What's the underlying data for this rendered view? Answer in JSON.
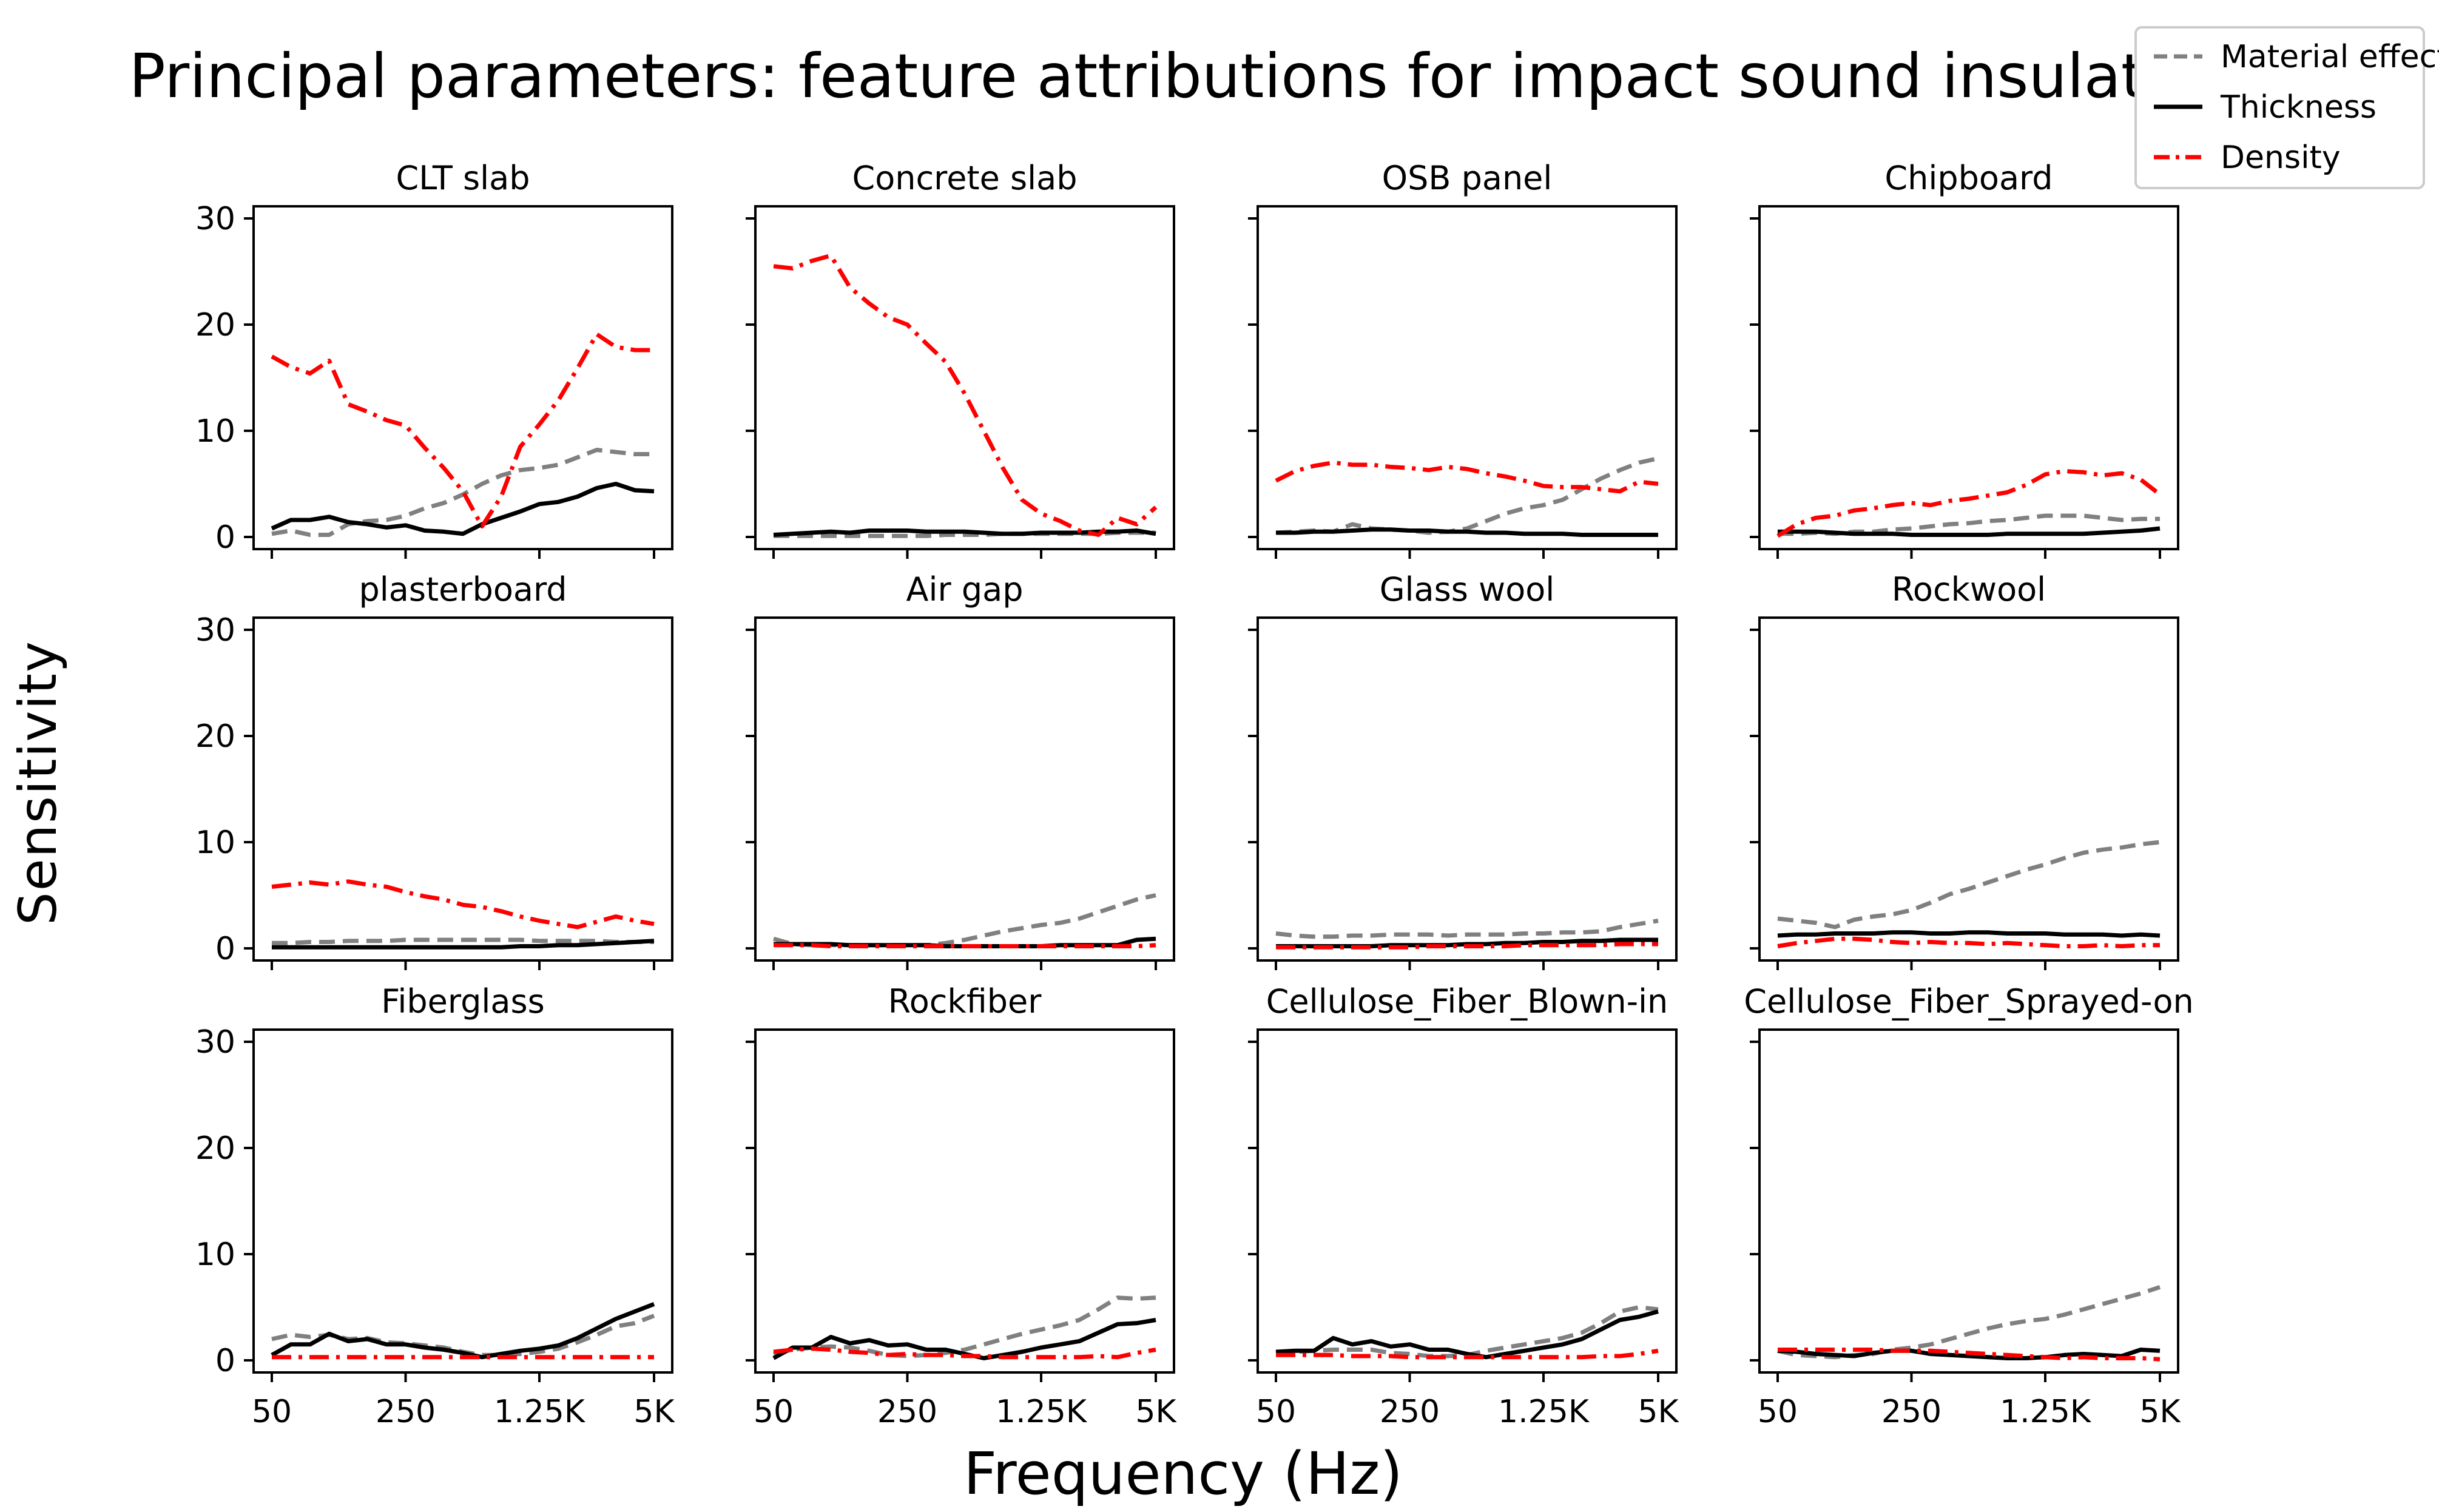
{
  "suptitle": "Principal parameters: feature attributions for impact sound insulation",
  "xlabel": "Frequency (Hz)",
  "ylabel": "Sensitivity",
  "legend": {
    "placement": "top-right",
    "entries": [
      {
        "label": "Material effect",
        "color": "#808080",
        "style": "dashed"
      },
      {
        "label": "Thickness",
        "color": "#000000",
        "style": "solid"
      },
      {
        "label": "Density",
        "color": "#ff0000",
        "style": "dashdot"
      }
    ]
  },
  "chart_data": {
    "type": "line",
    "grid": false,
    "x": [
      "50",
      "63",
      "80",
      "100",
      "125",
      "160",
      "200",
      "250",
      "315",
      "400",
      "500",
      "630",
      "800",
      "1K",
      "1.25K",
      "1.6K",
      "2K",
      "2.5K",
      "3.15K",
      "4K",
      "5K"
    ],
    "xticks": [
      "50",
      "250",
      "1.25K",
      "5K"
    ],
    "xtick_index": [
      0,
      7,
      14,
      20
    ],
    "ylim": [
      0,
      30
    ],
    "yticks": [
      0,
      10,
      20,
      30
    ],
    "panels": [
      {
        "title": "CLT slab",
        "series": [
          {
            "name": "Material effect",
            "values": [
              0.3,
              0.6,
              0.2,
              0.2,
              1.2,
              1.5,
              1.6,
              2.0,
              2.7,
              3.2,
              4.0,
              5.0,
              5.8,
              6.3,
              6.5,
              6.8,
              7.5,
              8.2,
              8.0,
              7.8,
              7.8
            ]
          },
          {
            "name": "Thickness",
            "values": [
              0.8,
              1.6,
              1.6,
              1.9,
              1.4,
              1.2,
              0.9,
              1.1,
              0.6,
              0.5,
              0.3,
              1.2,
              1.8,
              2.4,
              3.1,
              3.3,
              3.8,
              4.6,
              5.0,
              4.4,
              4.3
            ]
          },
          {
            "name": "Density",
            "values": [
              17.0,
              16.0,
              15.4,
              16.6,
              12.5,
              11.8,
              11.0,
              10.5,
              8.4,
              6.5,
              4.3,
              1.0,
              3.8,
              8.5,
              10.6,
              12.9,
              15.9,
              19.1,
              17.9,
              17.6,
              17.6
            ]
          }
        ]
      },
      {
        "title": "Concrete slab",
        "series": [
          {
            "name": "Material effect",
            "values": [
              0.1,
              0.1,
              0.1,
              0.1,
              0.1,
              0.1,
              0.1,
              0.1,
              0.1,
              0.2,
              0.2,
              0.2,
              0.3,
              0.3,
              0.3,
              0.3,
              0.3,
              0.3,
              0.4,
              0.4,
              0.4
            ]
          },
          {
            "name": "Thickness",
            "values": [
              0.2,
              0.3,
              0.4,
              0.5,
              0.4,
              0.6,
              0.6,
              0.6,
              0.5,
              0.5,
              0.5,
              0.4,
              0.3,
              0.3,
              0.4,
              0.4,
              0.4,
              0.5,
              0.5,
              0.6,
              0.3
            ]
          },
          {
            "name": "Density",
            "values": [
              25.5,
              25.3,
              26.0,
              26.5,
              23.5,
              22.0,
              20.7,
              20.0,
              18.2,
              16.5,
              13.5,
              10.0,
              6.5,
              3.5,
              2.2,
              1.5,
              0.6,
              0.2,
              1.8,
              1.2,
              2.8
            ]
          }
        ]
      },
      {
        "title": "OSB panel",
        "series": [
          {
            "name": "Material effect",
            "values": [
              0.4,
              0.5,
              0.6,
              0.5,
              1.2,
              0.8,
              0.7,
              0.6,
              0.4,
              0.5,
              0.8,
              1.5,
              2.2,
              2.7,
              3.0,
              3.5,
              4.5,
              5.5,
              6.3,
              7.0,
              7.4
            ]
          },
          {
            "name": "Thickness",
            "values": [
              0.4,
              0.4,
              0.5,
              0.5,
              0.6,
              0.7,
              0.7,
              0.6,
              0.6,
              0.5,
              0.5,
              0.4,
              0.4,
              0.3,
              0.3,
              0.3,
              0.2,
              0.2,
              0.2,
              0.2,
              0.2
            ]
          },
          {
            "name": "Density",
            "values": [
              5.3,
              6.2,
              6.7,
              7.0,
              6.8,
              6.8,
              6.6,
              6.5,
              6.3,
              6.6,
              6.4,
              6.0,
              5.7,
              5.3,
              4.8,
              4.7,
              4.7,
              4.5,
              4.3,
              5.2,
              5.0
            ]
          }
        ]
      },
      {
        "title": "Chipboard",
        "series": [
          {
            "name": "Material effect",
            "values": [
              0.3,
              0.3,
              0.4,
              0.3,
              0.5,
              0.5,
              0.7,
              0.8,
              1.0,
              1.2,
              1.3,
              1.5,
              1.6,
              1.8,
              2.0,
              2.0,
              2.0,
              1.8,
              1.6,
              1.7,
              1.7
            ]
          },
          {
            "name": "Thickness",
            "values": [
              0.5,
              0.5,
              0.5,
              0.4,
              0.3,
              0.3,
              0.3,
              0.2,
              0.2,
              0.2,
              0.2,
              0.2,
              0.3,
              0.3,
              0.3,
              0.3,
              0.3,
              0.4,
              0.5,
              0.6,
              0.8
            ]
          },
          {
            "name": "Density",
            "values": [
              0.1,
              1.2,
              1.8,
              2.0,
              2.5,
              2.7,
              3.0,
              3.2,
              3.0,
              3.4,
              3.6,
              3.9,
              4.2,
              4.9,
              5.9,
              6.2,
              6.1,
              5.8,
              6.0,
              5.4,
              4.0
            ]
          }
        ]
      },
      {
        "title": "plasterboard",
        "series": [
          {
            "name": "Material effect",
            "values": [
              0.5,
              0.5,
              0.6,
              0.6,
              0.7,
              0.7,
              0.7,
              0.8,
              0.8,
              0.8,
              0.8,
              0.8,
              0.8,
              0.8,
              0.7,
              0.7,
              0.7,
              0.7,
              0.6,
              0.6,
              0.6
            ]
          },
          {
            "name": "Thickness",
            "values": [
              0.1,
              0.1,
              0.1,
              0.1,
              0.1,
              0.1,
              0.1,
              0.1,
              0.1,
              0.1,
              0.1,
              0.1,
              0.1,
              0.2,
              0.2,
              0.3,
              0.3,
              0.4,
              0.5,
              0.6,
              0.7
            ]
          },
          {
            "name": "Density",
            "values": [
              5.8,
              6.0,
              6.2,
              6.0,
              6.3,
              6.0,
              5.8,
              5.3,
              4.9,
              4.6,
              4.1,
              3.9,
              3.5,
              3.0,
              2.6,
              2.3,
              2.0,
              2.5,
              3.0,
              2.6,
              2.3
            ]
          }
        ]
      },
      {
        "title": "Air gap",
        "series": [
          {
            "name": "Material effect",
            "values": [
              0.9,
              0.4,
              0.3,
              0.3,
              0.3,
              0.3,
              0.3,
              0.3,
              0.3,
              0.5,
              0.8,
              1.2,
              1.6,
              1.9,
              2.2,
              2.4,
              2.8,
              3.4,
              4.0,
              4.6,
              5.0
            ]
          },
          {
            "name": "Thickness",
            "values": [
              0.4,
              0.4,
              0.4,
              0.4,
              0.3,
              0.3,
              0.3,
              0.3,
              0.3,
              0.2,
              0.2,
              0.2,
              0.2,
              0.2,
              0.2,
              0.3,
              0.3,
              0.3,
              0.3,
              0.8,
              0.9
            ]
          },
          {
            "name": "Density",
            "values": [
              0.3,
              0.3,
              0.3,
              0.2,
              0.2,
              0.2,
              0.2,
              0.2,
              0.2,
              0.2,
              0.2,
              0.2,
              0.2,
              0.2,
              0.2,
              0.2,
              0.2,
              0.2,
              0.2,
              0.2,
              0.3
            ]
          }
        ]
      },
      {
        "title": "Glass wool",
        "series": [
          {
            "name": "Material effect",
            "values": [
              1.4,
              1.2,
              1.1,
              1.1,
              1.2,
              1.2,
              1.3,
              1.3,
              1.3,
              1.2,
              1.3,
              1.3,
              1.3,
              1.4,
              1.4,
              1.5,
              1.5,
              1.6,
              2.0,
              2.3,
              2.6
            ]
          },
          {
            "name": "Thickness",
            "values": [
              0.2,
              0.2,
              0.2,
              0.2,
              0.2,
              0.2,
              0.3,
              0.3,
              0.3,
              0.3,
              0.4,
              0.4,
              0.5,
              0.5,
              0.6,
              0.6,
              0.7,
              0.7,
              0.8,
              0.8,
              0.8
            ]
          },
          {
            "name": "Density",
            "values": [
              0.1,
              0.1,
              0.1,
              0.1,
              0.1,
              0.1,
              0.1,
              0.1,
              0.2,
              0.2,
              0.2,
              0.2,
              0.2,
              0.3,
              0.3,
              0.3,
              0.3,
              0.3,
              0.4,
              0.4,
              0.4
            ]
          }
        ]
      },
      {
        "title": "Rockwool",
        "series": [
          {
            "name": "Material effect",
            "values": [
              2.8,
              2.6,
              2.4,
              2.0,
              2.7,
              3.0,
              3.2,
              3.6,
              4.3,
              5.1,
              5.6,
              6.2,
              6.8,
              7.4,
              7.9,
              8.5,
              9.0,
              9.3,
              9.5,
              9.8,
              10.0
            ]
          },
          {
            "name": "Thickness",
            "values": [
              1.2,
              1.3,
              1.3,
              1.4,
              1.4,
              1.4,
              1.5,
              1.5,
              1.4,
              1.4,
              1.5,
              1.5,
              1.4,
              1.4,
              1.4,
              1.3,
              1.3,
              1.3,
              1.2,
              1.3,
              1.2
            ]
          },
          {
            "name": "Density",
            "values": [
              0.2,
              0.5,
              0.7,
              0.9,
              0.9,
              0.8,
              0.6,
              0.5,
              0.6,
              0.5,
              0.5,
              0.4,
              0.5,
              0.4,
              0.3,
              0.2,
              0.2,
              0.3,
              0.2,
              0.3,
              0.3
            ]
          }
        ]
      },
      {
        "title": "Fiberglass",
        "series": [
          {
            "name": "Material effect",
            "values": [
              2.0,
              2.4,
              2.2,
              2.4,
              2.0,
              2.1,
              1.7,
              1.6,
              1.4,
              1.2,
              0.8,
              0.5,
              0.5,
              0.6,
              0.8,
              1.1,
              1.7,
              2.4,
              3.2,
              3.5,
              4.2
            ]
          },
          {
            "name": "Thickness",
            "values": [
              0.5,
              1.5,
              1.5,
              2.5,
              1.8,
              2.0,
              1.5,
              1.5,
              1.2,
              1.0,
              0.7,
              0.3,
              0.6,
              0.9,
              1.1,
              1.4,
              2.1,
              3.0,
              3.9,
              4.6,
              5.3
            ]
          },
          {
            "name": "Density",
            "values": [
              0.3,
              0.3,
              0.3,
              0.3,
              0.3,
              0.3,
              0.3,
              0.3,
              0.3,
              0.3,
              0.3,
              0.3,
              0.3,
              0.3,
              0.3,
              0.3,
              0.3,
              0.3,
              0.3,
              0.3,
              0.3
            ]
          }
        ]
      },
      {
        "title": "Rockfiber",
        "series": [
          {
            "name": "Material effect",
            "values": [
              0.6,
              1.0,
              1.2,
              1.3,
              1.2,
              0.9,
              0.5,
              0.4,
              0.5,
              0.7,
              1.0,
              1.5,
              2.0,
              2.5,
              2.9,
              3.3,
              3.8,
              4.8,
              5.9,
              5.8,
              5.9
            ]
          },
          {
            "name": "Thickness",
            "values": [
              0.2,
              1.2,
              1.2,
              2.2,
              1.6,
              1.9,
              1.4,
              1.5,
              1.0,
              1.0,
              0.6,
              0.2,
              0.5,
              0.8,
              1.2,
              1.5,
              1.8,
              2.6,
              3.4,
              3.5,
              3.8
            ]
          },
          {
            "name": "Density",
            "values": [
              0.8,
              1.0,
              1.1,
              1.0,
              0.8,
              0.7,
              0.5,
              0.6,
              0.5,
              0.5,
              0.4,
              0.4,
              0.3,
              0.3,
              0.3,
              0.3,
              0.3,
              0.4,
              0.3,
              0.7,
              1.0
            ]
          }
        ]
      },
      {
        "title": "Cellulose_Fiber_Blown-in",
        "series": [
          {
            "name": "Material effect",
            "values": [
              0.7,
              0.8,
              0.9,
              1.0,
              1.0,
              1.0,
              0.7,
              0.6,
              0.4,
              0.4,
              0.5,
              0.9,
              1.2,
              1.5,
              1.8,
              2.1,
              2.6,
              3.5,
              4.6,
              5.0,
              4.8
            ]
          },
          {
            "name": "Thickness",
            "values": [
              0.8,
              0.9,
              0.9,
              2.1,
              1.5,
              1.8,
              1.3,
              1.5,
              1.0,
              1.0,
              0.6,
              0.3,
              0.6,
              0.9,
              1.2,
              1.5,
              2.0,
              2.9,
              3.8,
              4.1,
              4.6
            ]
          },
          {
            "name": "Density",
            "values": [
              0.5,
              0.5,
              0.5,
              0.5,
              0.4,
              0.4,
              0.4,
              0.3,
              0.3,
              0.3,
              0.3,
              0.3,
              0.3,
              0.3,
              0.3,
              0.3,
              0.3,
              0.4,
              0.4,
              0.6,
              0.9
            ]
          }
        ]
      },
      {
        "title": "Cellulose_Fiber_Sprayed-on",
        "series": [
          {
            "name": "Material effect",
            "values": [
              0.9,
              0.5,
              0.4,
              0.3,
              0.5,
              0.6,
              1.0,
              1.2,
              1.5,
              2.0,
              2.5,
              3.0,
              3.4,
              3.7,
              3.9,
              4.3,
              4.8,
              5.3,
              5.8,
              6.3,
              6.9
            ]
          },
          {
            "name": "Thickness",
            "values": [
              0.9,
              0.8,
              0.6,
              0.5,
              0.4,
              0.7,
              0.9,
              0.9,
              0.6,
              0.5,
              0.4,
              0.3,
              0.2,
              0.2,
              0.3,
              0.5,
              0.6,
              0.5,
              0.4,
              1.0,
              0.9
            ]
          },
          {
            "name": "Density",
            "values": [
              1.0,
              1.0,
              1.0,
              1.0,
              1.0,
              1.0,
              0.9,
              0.9,
              0.9,
              0.8,
              0.7,
              0.6,
              0.5,
              0.4,
              0.3,
              0.2,
              0.3,
              0.2,
              0.2,
              0.2,
              0.1
            ]
          }
        ]
      }
    ]
  }
}
